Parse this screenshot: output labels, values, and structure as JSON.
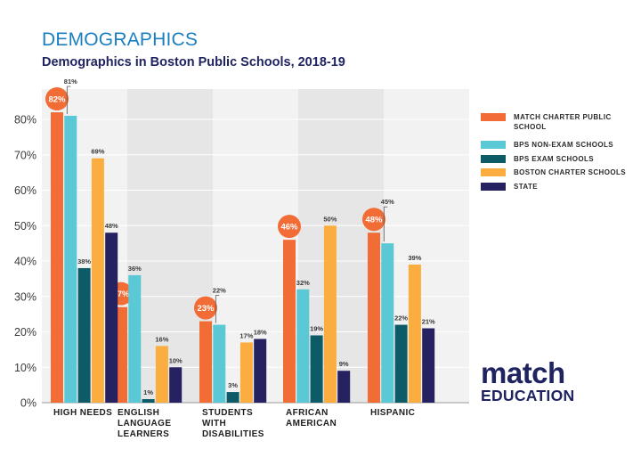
{
  "header": {
    "title": "DEMOGRAPHICS",
    "subtitle": "Demographics in Boston Public Schools, 2018-19"
  },
  "colors": {
    "match": "#f26c36",
    "bps_non_exam": "#5bc8d5",
    "bps_exam": "#0d5b66",
    "boston_charter": "#fbad3f",
    "state": "#262261",
    "band_shaded": "#e6e6e6",
    "band_light": "#f2f2f2",
    "grid": "#ffffff"
  },
  "legend": [
    {
      "label": "MATCH CHARTER PUBLIC SCHOOL",
      "color": "#f26c36"
    },
    {
      "label": "BPS NON-EXAM SCHOOLS",
      "color": "#5bc8d5"
    },
    {
      "label": "BPS EXAM SCHOOLS",
      "color": "#0d5b66"
    },
    {
      "label": "BOSTON CHARTER SCHOOLS",
      "color": "#fbad3f"
    },
    {
      "label": "STATE",
      "color": "#262261"
    }
  ],
  "logo": {
    "top": "match",
    "bottom": "EDUCATION"
  },
  "chart_data": {
    "type": "bar",
    "categories": [
      "HIGH NEEDS",
      "ENGLISH LANGUAGE LEARNERS",
      "STUDENTS WITH DISABILITIES",
      "AFRICAN AMERICAN",
      "HISPANIC"
    ],
    "category_lines": [
      [
        "HIGH NEEDS"
      ],
      [
        "ENGLISH",
        "LANGUAGE",
        "LEARNERS"
      ],
      [
        "STUDENTS",
        "WITH",
        "DISABILITIES"
      ],
      [
        "AFRICAN",
        "AMERICAN"
      ],
      [
        "HISPANIC"
      ]
    ],
    "series": [
      {
        "name": "MATCH CHARTER PUBLIC SCHOOL",
        "color": "#f26c36",
        "values": [
          82,
          27,
          23,
          46,
          48
        ]
      },
      {
        "name": "BPS NON-EXAM SCHOOLS",
        "color": "#5bc8d5",
        "values": [
          81,
          36,
          22,
          32,
          45
        ]
      },
      {
        "name": "BPS EXAM SCHOOLS",
        "color": "#0d5b66",
        "values": [
          38,
          1,
          3,
          19,
          22
        ]
      },
      {
        "name": "BOSTON CHARTER SCHOOLS",
        "color": "#fbad3f",
        "values": [
          69,
          16,
          17,
          50,
          39
        ]
      },
      {
        "name": "STATE",
        "color": "#262261",
        "values": [
          48,
          10,
          18,
          9,
          21
        ]
      }
    ],
    "yticks": [
      0,
      10,
      20,
      30,
      40,
      50,
      60,
      70,
      80
    ],
    "ytick_labels": [
      "0%",
      "10%",
      "20%",
      "30%",
      "40%",
      "50%",
      "60%",
      "70%",
      "80%"
    ],
    "ylim": [
      0,
      85
    ],
    "title": "",
    "xlabel": "",
    "ylabel": "",
    "grid": true,
    "legend_position": "right",
    "highlight_series": "MATCH CHARTER PUBLIC SCHOOL"
  }
}
